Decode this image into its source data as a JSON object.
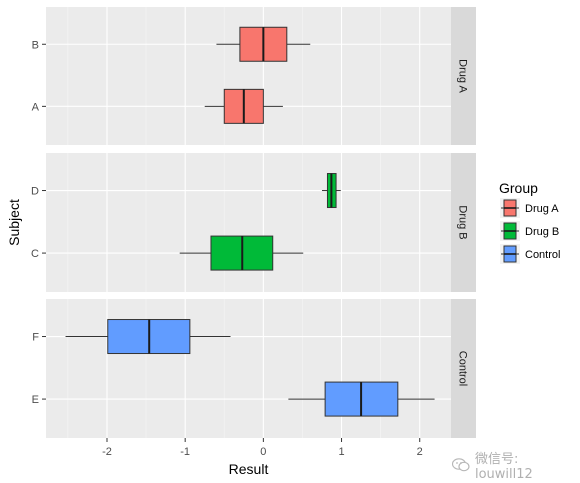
{
  "chart_data": {
    "type": "boxplot",
    "xlabel": "Result",
    "ylabel": "Subject",
    "xlim": [
      -2.78,
      2.4
    ],
    "x_ticks": [
      -2,
      -1,
      0,
      1,
      2
    ],
    "grid": true,
    "facet_orientation": "rows",
    "legend": {
      "title": "Group",
      "position": "right",
      "entries": [
        "Drug A",
        "Drug B",
        "Control"
      ]
    },
    "colors": {
      "Drug A": "#F8766D",
      "Drug B": "#00BA38",
      "Control": "#619CFF",
      "panel_bg": "#EBEBEB",
      "strip_bg": "#D9D9D9",
      "grid": "#FFFFFF",
      "text": "#4D4D4D"
    },
    "facets": [
      {
        "label": "Drug A",
        "categories": [
          "A",
          "B"
        ],
        "boxes": [
          {
            "subject": "B",
            "group": "Drug A",
            "whisker_low": -0.6,
            "q1": -0.3,
            "median": 0.0,
            "q3": 0.3,
            "whisker_high": 0.6
          },
          {
            "subject": "A",
            "group": "Drug A",
            "whisker_low": -0.75,
            "q1": -0.5,
            "median": -0.25,
            "q3": 0.0,
            "whisker_high": 0.25
          }
        ]
      },
      {
        "label": "Drug B",
        "categories": [
          "C",
          "D"
        ],
        "boxes": [
          {
            "subject": "D",
            "group": "Drug B",
            "whisker_low": 0.75,
            "q1": 0.82,
            "median": 0.87,
            "q3": 0.93,
            "whisker_high": 0.99
          },
          {
            "subject": "C",
            "group": "Drug B",
            "whisker_low": -1.07,
            "q1": -0.67,
            "median": -0.27,
            "q3": 0.12,
            "whisker_high": 0.51
          }
        ]
      },
      {
        "label": "Control",
        "categories": [
          "E",
          "F"
        ],
        "boxes": [
          {
            "subject": "F",
            "group": "Control",
            "whisker_low": -2.53,
            "q1": -1.99,
            "median": -1.46,
            "q3": -0.94,
            "whisker_high": -0.42
          },
          {
            "subject": "E",
            "group": "Control",
            "whisker_low": 0.32,
            "q1": 0.79,
            "median": 1.25,
            "q3": 1.72,
            "whisker_high": 2.19
          }
        ]
      }
    ]
  },
  "watermark": {
    "text": "微信号: louwill12"
  }
}
